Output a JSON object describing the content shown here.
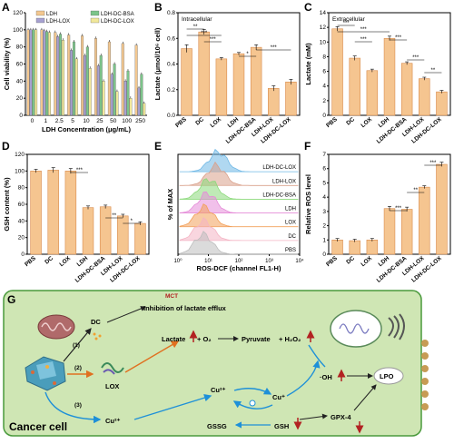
{
  "colors": {
    "orange": "#f5c590",
    "orange_edge": "#d98b4c",
    "axis": "#000000",
    "panel_g_bg": "#cfe6b4",
    "panel_g_edge": "#4a9a3c",
    "red_arrow": "#b22222",
    "blue_arrow": "#1e90d8",
    "orange_arrow": "#e07020"
  },
  "chart_data": [
    {
      "panel": "A",
      "type": "bar",
      "ylabel": "Cell viability (%)",
      "xlabel": "LDH Concentration (μg/mL)",
      "ylim": [
        0,
        120
      ],
      "yticks": [
        "0",
        "20",
        "40",
        "60",
        "80",
        "100",
        "120"
      ],
      "categories": [
        "0",
        "1",
        "2.5",
        "5",
        "10",
        "25",
        "50",
        "100",
        "250"
      ],
      "series": [
        {
          "name": "LDH",
          "color": "#f3c78f",
          "values": [
            100,
            100,
            97,
            94,
            93,
            90,
            86,
            84,
            82
          ]
        },
        {
          "name": "LDH-LOX",
          "color": "#a7a1d1",
          "values": [
            100,
            99,
            92,
            76,
            70,
            58,
            48,
            40,
            32
          ]
        },
        {
          "name": "LDH-DC-BSA",
          "color": "#7cc48a",
          "values": [
            100,
            98,
            95,
            86,
            80,
            70,
            60,
            52,
            48
          ]
        },
        {
          "name": "LDH-DC-LOX",
          "color": "#f1e89b",
          "values": [
            100,
            97,
            88,
            66,
            55,
            40,
            28,
            20,
            14
          ]
        }
      ],
      "legend": "top"
    },
    {
      "panel": "B",
      "type": "bar",
      "title": "Intracellular",
      "ylabel": "Lactate (μmol/10⁶ cell)",
      "ylim": [
        0,
        0.8
      ],
      "yticks": [
        "0.0",
        "0.2",
        "0.4",
        "0.6",
        "0.8"
      ],
      "categories": [
        "PBS",
        "DC",
        "LOX",
        "LDH",
        "LDH-DC-BSA",
        "LDH-LOX",
        "LDH-DC-LOX"
      ],
      "values": [
        0.52,
        0.65,
        0.44,
        0.48,
        0.53,
        0.21,
        0.26
      ],
      "errors": [
        0.03,
        0.02,
        0.01,
        0.01,
        0.02,
        0.02,
        0.02
      ],
      "sig": [
        "**",
        "***",
        "***",
        "*",
        "***"
      ]
    },
    {
      "panel": "C",
      "type": "bar",
      "title": "Extracellular",
      "ylabel": "Lactate (mM)",
      "ylim": [
        0,
        14
      ],
      "yticks": [
        "0",
        "2",
        "4",
        "6",
        "8",
        "10",
        "12",
        "14"
      ],
      "categories": [
        "PBS",
        "DC",
        "LOX",
        "LDH",
        "LDH-DC-BSA",
        "LDH-LOX",
        "LDH-DC-LOX"
      ],
      "values": [
        11.8,
        7.8,
        6.1,
        10.5,
        7.1,
        5.0,
        3.2
      ],
      "errors": [
        0.3,
        0.3,
        0.2,
        0.3,
        0.2,
        0.2,
        0.2
      ],
      "sig": [
        "***",
        "***",
        "***",
        "***",
        "***",
        "**"
      ]
    },
    {
      "panel": "D",
      "type": "bar",
      "ylabel": "GSH content (%)",
      "ylim": [
        0,
        120
      ],
      "yticks": [
        "0",
        "20",
        "40",
        "60",
        "80",
        "100",
        "120"
      ],
      "categories": [
        "PBS",
        "DC",
        "LOX",
        "LDH",
        "LDH-DC-BSA",
        "LDH-LOX",
        "LDH-DC-LOX"
      ],
      "values": [
        100,
        101,
        100,
        56,
        57,
        46,
        37
      ],
      "errors": [
        2,
        3,
        3,
        2,
        2,
        2,
        2
      ],
      "sig": [
        "***",
        "**",
        "*"
      ]
    },
    {
      "panel": "E",
      "type": "area",
      "xlabel": "ROS-DCF (channel FL1-H)",
      "ylabel": "% of MAX",
      "xticks": [
        "10⁰",
        "10¹",
        "10²",
        "10³",
        "10⁴"
      ],
      "series": [
        {
          "name": "LDH-DC-LOX",
          "color": "#6fb8e6",
          "peak": 1.9
        },
        {
          "name": "LDH-LOX",
          "color": "#d9a08a",
          "peak": 1.75
        },
        {
          "name": "LDH-DC-BSA",
          "color": "#8bd97a",
          "peak": 1.2
        },
        {
          "name": "LDH",
          "color": "#e58cd8",
          "peak": 1.1
        },
        {
          "name": "LOX",
          "color": "#f2a05a",
          "peak": 0.9
        },
        {
          "name": "DC",
          "color": "#f4b4c4",
          "peak": 0.85
        },
        {
          "name": "PBS",
          "color": "#bdbdbd",
          "peak": 0.8
        }
      ]
    },
    {
      "panel": "F",
      "type": "bar",
      "ylabel": "Relative ROS level",
      "ylim": [
        0,
        7
      ],
      "yticks": [
        "0",
        "1",
        "2",
        "3",
        "4",
        "5",
        "6",
        "7"
      ],
      "categories": [
        "PBS",
        "DC",
        "LOX",
        "LDH",
        "LDH-DC-BSA",
        "LDH-LOX",
        "LDH-DC-LOX"
      ],
      "values": [
        1.0,
        0.95,
        1.0,
        3.2,
        3.15,
        4.7,
        6.3
      ],
      "errors": [
        0.1,
        0.1,
        0.1,
        0.15,
        0.15,
        0.1,
        0.15
      ],
      "sig": [
        "***",
        "**",
        "***"
      ]
    }
  ],
  "panels": {
    "A": "A",
    "B": "B",
    "C": "C",
    "D": "D",
    "E": "E",
    "F": "F",
    "G": "G"
  },
  "schematic": {
    "mct": "MCT",
    "inhibition": "Inhibition of lactate efflux",
    "dc": "DC",
    "step1": "(1)",
    "step2": "(2)",
    "step3": "(3)",
    "lox": "LOX",
    "lactate": "Lactate",
    "o2": "+ O₂",
    "pyruvate": "Pyruvate",
    "h2o2": "+ H₂O₂",
    "cu2_center": "Cu²⁺",
    "cu1": "Cu⁺",
    "cu2_left": "Cu²⁺",
    "oh": "·OH",
    "lpo": "LPO",
    "gssg": "GSSG",
    "gsh": "GSH",
    "gpx4": "GPX-4",
    "cancer_cell": "Cancer cell"
  }
}
